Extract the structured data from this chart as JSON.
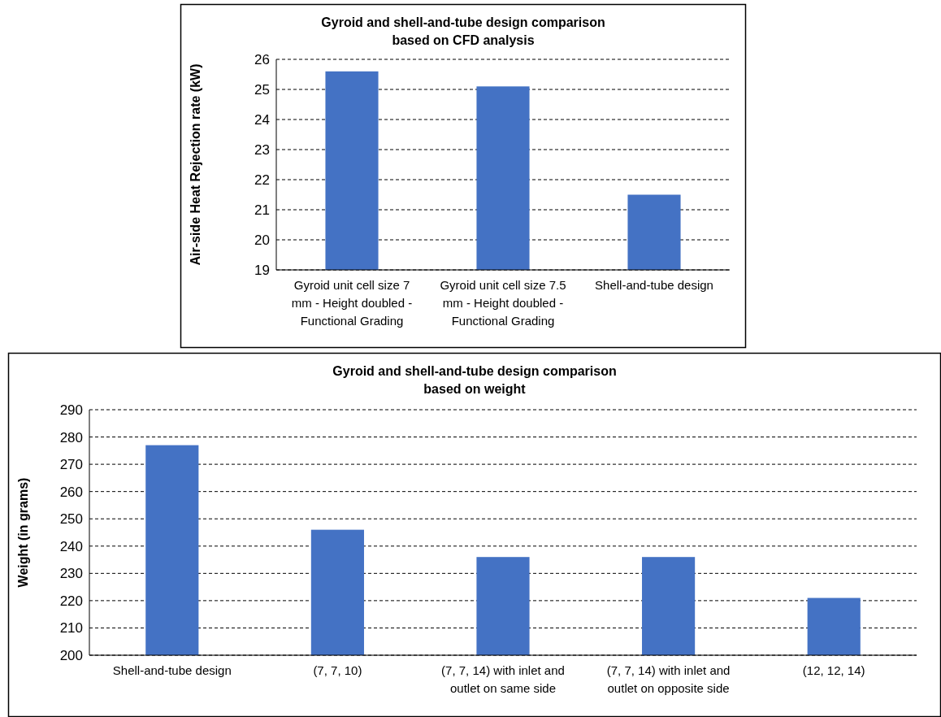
{
  "chart_data": [
    {
      "type": "bar",
      "title": "Gyroid and shell-and-tube design comparison\nbased on CFD analysis",
      "ylabel": "Air-side Heat Rejection rate (kW)",
      "categories": [
        "Gyroid unit cell size 7 mm - Height doubled - Functional Grading",
        "Gyroid unit cell size 7.5 mm - Height doubled - Functional Grading",
        "Shell-and-tube design"
      ],
      "values": [
        25.6,
        25.1,
        21.5
      ],
      "color": "#4472c4",
      "ylim": [
        19,
        26
      ],
      "yticks": [
        19,
        20,
        21,
        22,
        23,
        24,
        25,
        26
      ],
      "grid": "y",
      "line_style": "dashed"
    },
    {
      "type": "bar",
      "title": "Gyroid and shell-and-tube design comparison\nbased on weight",
      "ylabel": "Weight (in grams)",
      "categories": [
        "Shell-and-tube design",
        "(7, 7, 10)",
        "(7, 7, 14) with inlet and outlet on same side",
        "(7, 7, 14) with inlet and outlet on opposite side",
        "(12, 12, 14)"
      ],
      "values": [
        277,
        246,
        236,
        236,
        221
      ],
      "color": "#4472c4",
      "ylim": [
        200,
        290
      ],
      "yticks": [
        200,
        210,
        220,
        230,
        240,
        250,
        260,
        270,
        280,
        290
      ],
      "grid": "y",
      "line_style": "dashed"
    }
  ]
}
